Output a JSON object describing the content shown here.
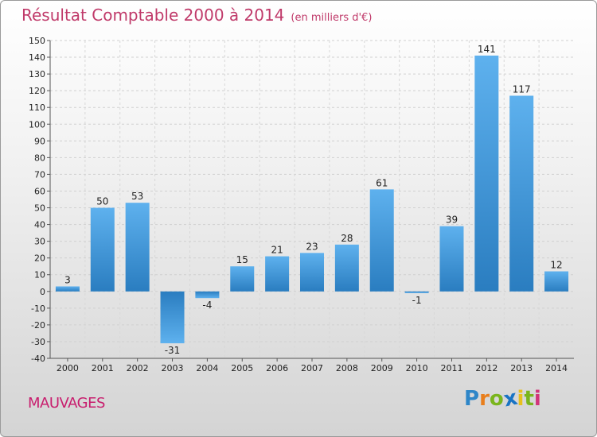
{
  "chart_data": {
    "type": "bar",
    "title": "Résultat Comptable 2000 à 2014",
    "subtitle": "(en milliers d'€)",
    "categories": [
      "2000",
      "2001",
      "2002",
      "2003",
      "2004",
      "2005",
      "2006",
      "2007",
      "2008",
      "2009",
      "2010",
      "2011",
      "2012",
      "2013",
      "2014"
    ],
    "values": [
      3,
      50,
      53,
      -31,
      -4,
      15,
      21,
      23,
      28,
      61,
      -1,
      39,
      141,
      117,
      12
    ],
    "ylim": [
      -40,
      150
    ],
    "ytick_step": 10,
    "grid": true,
    "xlabel": "",
    "ylabel": ""
  },
  "location": "MAUVAGES",
  "logo": {
    "text": "Proxiti",
    "letters": [
      "P",
      "r",
      "o",
      "x",
      "i",
      "t",
      "i"
    ],
    "colors": [
      "#2e86c8",
      "#e87e1c",
      "#7ab51d",
      "#1a74c4",
      "#e8c01c",
      "#7ab51d",
      "#d2357a"
    ]
  },
  "colors": {
    "bar": "#3d92d6",
    "title": "#c03a6a",
    "location": "#c81e6e"
  }
}
